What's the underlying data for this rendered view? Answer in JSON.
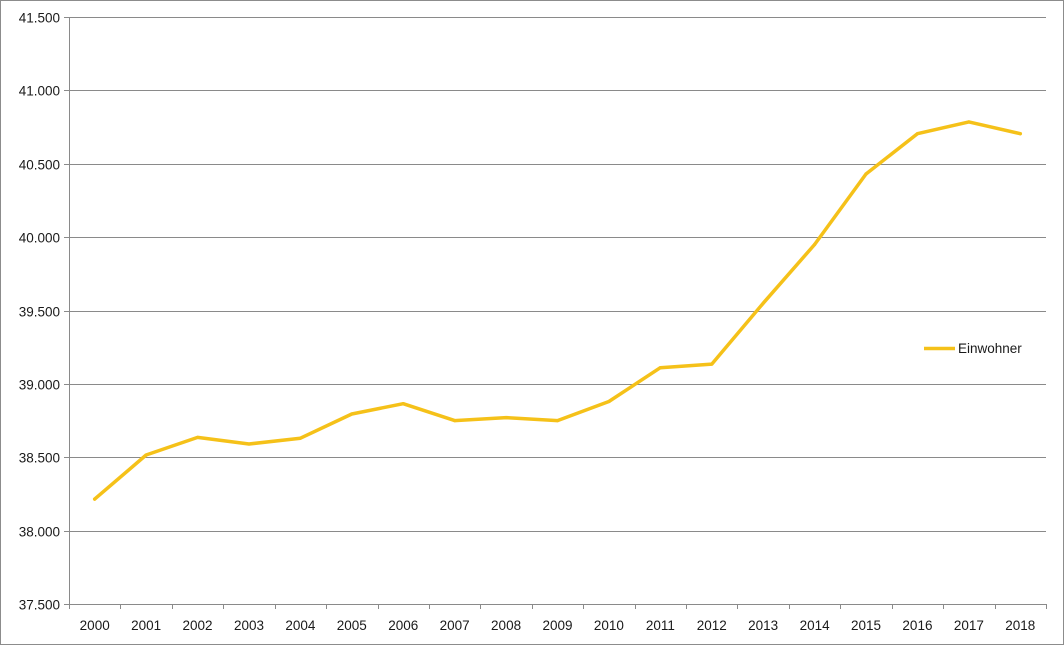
{
  "chart_data": {
    "type": "line",
    "title": "",
    "xlabel": "",
    "ylabel": "",
    "categories": [
      "2000",
      "2001",
      "2002",
      "2003",
      "2004",
      "2005",
      "2006",
      "2007",
      "2008",
      "2009",
      "2010",
      "2011",
      "2012",
      "2013",
      "2014",
      "2015",
      "2016",
      "2017",
      "2018"
    ],
    "series": [
      {
        "name": "Einwohner",
        "color": "#f5c119",
        "values": [
          38215,
          38515,
          38635,
          38590,
          38630,
          38795,
          38865,
          38750,
          38770,
          38750,
          38880,
          39110,
          39135,
          39550,
          39950,
          40430,
          40705,
          40785,
          40705
        ]
      }
    ],
    "ylim": [
      37500,
      41500
    ],
    "y_ticks": [
      37500,
      38000,
      38500,
      39000,
      39500,
      40000,
      40500,
      41000,
      41500
    ],
    "y_tick_labels": [
      "37.500",
      "38.000",
      "38.500",
      "39.000",
      "39.500",
      "40.000",
      "40.500",
      "41.000",
      "41.500"
    ],
    "grid": true,
    "legend_position": "right"
  }
}
